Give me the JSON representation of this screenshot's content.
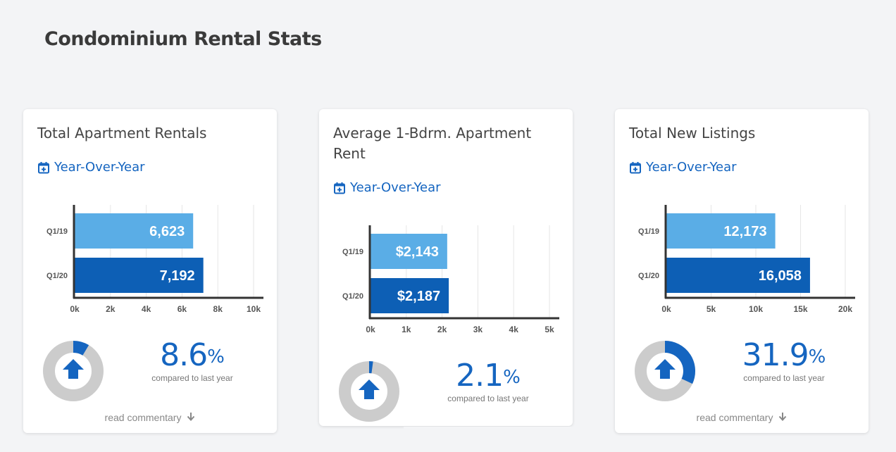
{
  "page": {
    "title": "Condominium Rental Stats"
  },
  "cards": [
    {
      "title": "Total Apartment Rentals",
      "period_label": "Year-Over-Year",
      "stat_value": "8.6",
      "stat_unit": "%",
      "stat_caption": "compared to last year",
      "commentary_label": "read commentary",
      "donut_fraction": 0.086,
      "colors": {
        "accent": "#1565c0",
        "track": "#cccccc"
      }
    },
    {
      "title": "Average 1-Bdrm. Apartment Rent",
      "period_label": "Year-Over-Year",
      "stat_value": "2.1",
      "stat_unit": "%",
      "stat_caption": "compared to last year",
      "donut_fraction": 0.021,
      "colors": {
        "accent": "#1565c0",
        "track": "#cccccc"
      }
    },
    {
      "title": "Total New Listings",
      "period_label": "Year-Over-Year",
      "stat_value": "31.9",
      "stat_unit": "%",
      "stat_caption": "compared to last year",
      "commentary_label": "read commentary",
      "donut_fraction": 0.319,
      "colors": {
        "accent": "#1565c0",
        "track": "#cccccc"
      }
    }
  ],
  "chart_data": [
    {
      "type": "bar",
      "orientation": "horizontal",
      "categories": [
        "Q1/19",
        "Q1/20"
      ],
      "values": [
        6623,
        7192
      ],
      "value_labels": [
        "6,623",
        "7,192"
      ],
      "xlim": [
        0,
        10000
      ],
      "xticks": [
        "0k",
        "2k",
        "4k",
        "6k",
        "8k",
        "10k"
      ],
      "grid": true,
      "bar_colors": [
        "#5aade6",
        "#0d5fb5"
      ]
    },
    {
      "type": "bar",
      "orientation": "horizontal",
      "categories": [
        "Q1/19",
        "Q1/20"
      ],
      "values": [
        2143,
        2187
      ],
      "value_labels": [
        "$2,143",
        "$2,187"
      ],
      "xlim": [
        0,
        5000
      ],
      "xticks": [
        "0k",
        "1k",
        "2k",
        "3k",
        "4k",
        "5k"
      ],
      "grid": true,
      "bar_colors": [
        "#5aade6",
        "#0d5fb5"
      ]
    },
    {
      "type": "bar",
      "orientation": "horizontal",
      "categories": [
        "Q1/19",
        "Q1/20"
      ],
      "values": [
        12173,
        16058
      ],
      "value_labels": [
        "12,173",
        "16,058"
      ],
      "xlim": [
        0,
        20000
      ],
      "xticks": [
        "0k",
        "5k",
        "10k",
        "15k",
        "20k"
      ],
      "grid": true,
      "bar_colors": [
        "#5aade6",
        "#0d5fb5"
      ]
    }
  ]
}
